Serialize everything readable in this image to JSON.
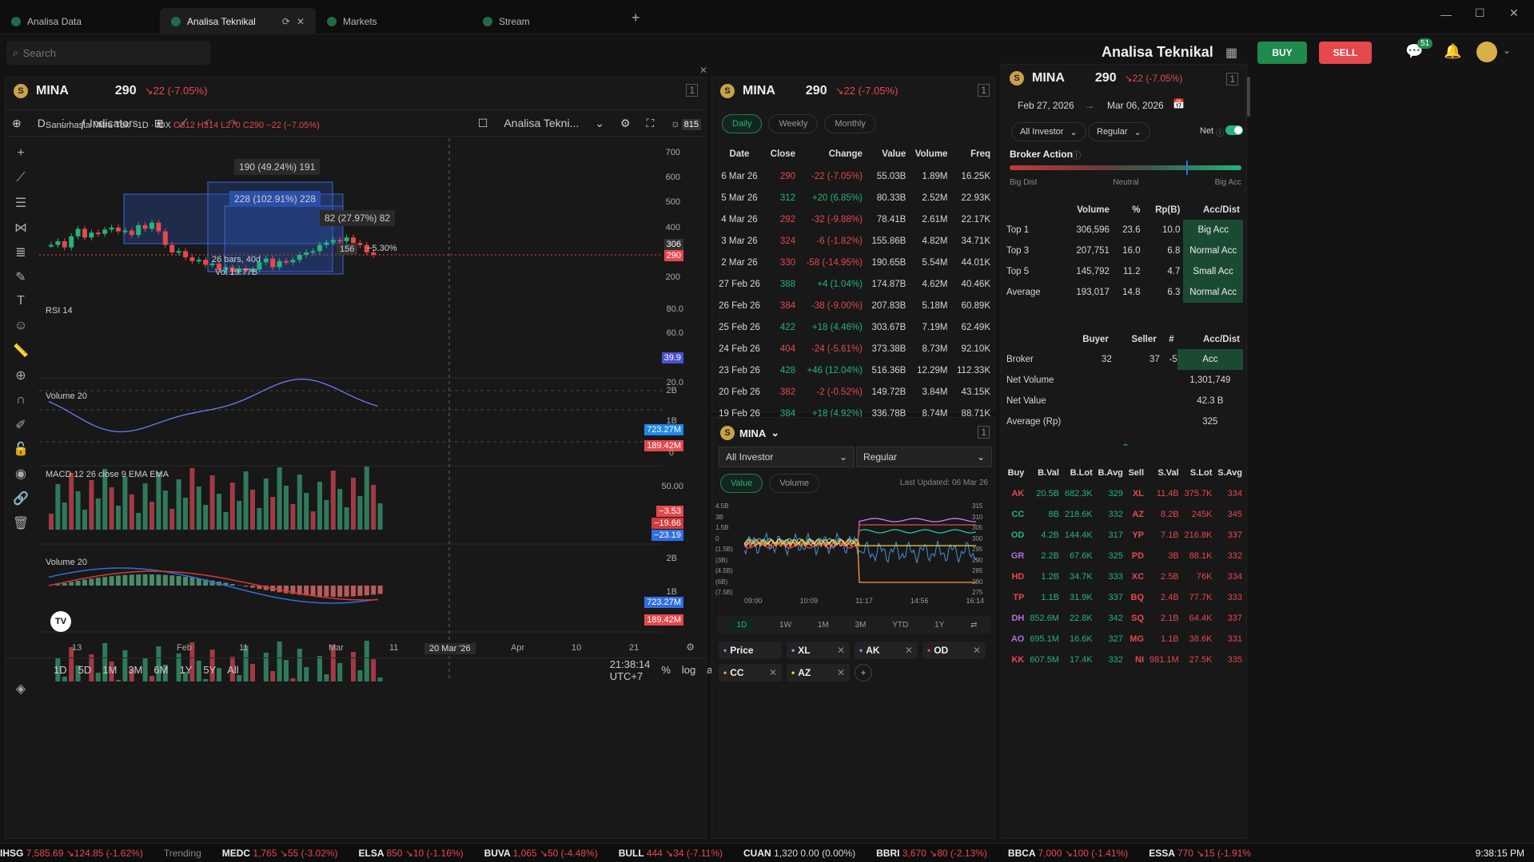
{
  "tabs": [
    {
      "label": "Analisa Data"
    },
    {
      "label": "Analisa Teknikal"
    },
    {
      "label": "Markets"
    },
    {
      "label": "Stream"
    }
  ],
  "toolbar": {
    "search_placeholder": "Search",
    "page_title": "Analisa Teknikal",
    "buy": "BUY",
    "sell": "SELL",
    "notif_count": "51"
  },
  "chart_panel": {
    "symbol": "MINA",
    "price": "290",
    "change": "↘22 (-7.05%)",
    "interval": "D",
    "indicators_label": "Indicators",
    "layout_name": "Analisa Tekni...",
    "legend": "Sanurhasta Mitra Tbk · 1D · IDX",
    "ohlc": "O312 H314 L270 C290 −22 (−7.05%)",
    "measure1": "190 (49.24%) 191",
    "measure2": "228 (102.91%) 228",
    "measure3": "82 (27.97%) 82",
    "bars_label": "26 bars, 40d",
    "vol_label": "Vol 19.77B",
    "measure_small": "156",
    "measure_pct": "−5.30%",
    "price_axis": [
      "815",
      "700",
      "600",
      "500",
      "400",
      "306",
      "290",
      "200"
    ],
    "rsi_title": "RSI 14",
    "rsi_axis": [
      "80.0",
      "60.0",
      "39.9",
      "20.0"
    ],
    "vol_title": "Volume 20",
    "vol_axis": [
      "2B",
      "1B",
      "723.27M",
      "189.42M",
      "0"
    ],
    "macd_title": "MACD 12 26 close 9 EMA EMA",
    "macd_axis": [
      "50.00",
      "−3.53",
      "−19.66",
      "−23.19"
    ],
    "vol2_title": "Volume 20",
    "vol2_axis": [
      "2B",
      "1B",
      "723.27M",
      "189.42M"
    ],
    "x_axis": [
      "13",
      "Feb",
      "11",
      "Mar",
      "11",
      "20 Mar '26",
      "Apr",
      "10",
      "21"
    ],
    "ranges": [
      "1D",
      "5D",
      "1M",
      "3M",
      "6M",
      "1Y",
      "5Y",
      "All"
    ],
    "clock": "21:38:14 UTC+7",
    "scale_opts": [
      "%",
      "log",
      "auto"
    ]
  },
  "history_panel": {
    "symbol": "MINA",
    "price": "290",
    "change": "↘22 (-7.05%)",
    "tabs": [
      "Daily",
      "Weekly",
      "Monthly"
    ],
    "columns": [
      "Date",
      "Close",
      "Change",
      "Value",
      "Volume",
      "Freq"
    ],
    "rows": [
      [
        "6 Mar 26",
        "290",
        "-22 (-7.05%)",
        "55.03B",
        "1.89M",
        "16.25K",
        "r"
      ],
      [
        "5 Mar 26",
        "312",
        "+20 (6.85%)",
        "80.33B",
        "2.52M",
        "22.93K",
        "g"
      ],
      [
        "4 Mar 26",
        "292",
        "-32 (-9.88%)",
        "78.41B",
        "2.61M",
        "22.17K",
        "r"
      ],
      [
        "3 Mar 26",
        "324",
        "-6 (-1.82%)",
        "155.86B",
        "4.82M",
        "34.71K",
        "r"
      ],
      [
        "2 Mar 26",
        "330",
        "-58 (-14.95%)",
        "190.65B",
        "5.54M",
        "44.01K",
        "r"
      ],
      [
        "27 Feb 26",
        "388",
        "+4 (1.04%)",
        "174.87B",
        "4.62M",
        "40.46K",
        "g"
      ],
      [
        "26 Feb 26",
        "384",
        "-38 (-9.00%)",
        "207.83B",
        "5.18M",
        "60.89K",
        "r"
      ],
      [
        "25 Feb 26",
        "422",
        "+18 (4.46%)",
        "303.67B",
        "7.19M",
        "62.49K",
        "g"
      ],
      [
        "24 Feb 26",
        "404",
        "-24 (-5.61%)",
        "373.38B",
        "8.73M",
        "92.10K",
        "r"
      ],
      [
        "23 Feb 26",
        "428",
        "+46 (12.04%)",
        "516.36B",
        "12.29M",
        "112.33K",
        "g"
      ],
      [
        "20 Feb 26",
        "382",
        "-2 (-0.52%)",
        "149.72B",
        "3.84M",
        "43.15K",
        "r"
      ],
      [
        "19 Feb 26",
        "384",
        "+18 (4.92%)",
        "336.78B",
        "8.74M",
        "88.71K",
        "g"
      ]
    ]
  },
  "flow_panel": {
    "symbol": "MINA",
    "investor": "All Investor",
    "market": "Regular",
    "toggles": [
      "Value",
      "Volume"
    ],
    "updated": "Last Updated: 06 Mar 26",
    "y_left": [
      "4.5B",
      "3B",
      "1.5B",
      "0",
      "(1.5B)",
      "(3B)",
      "(4.5B)",
      "(6B)",
      "(7.5B)"
    ],
    "y_right": [
      "315",
      "310",
      "305",
      "300",
      "295",
      "290",
      "285",
      "280",
      "275"
    ],
    "x_axis": [
      "09:00",
      "10:09",
      "11:17",
      "14:56",
      "16:14"
    ],
    "ranges": [
      "1D",
      "1W",
      "1M",
      "3M",
      "YTD",
      "1Y"
    ],
    "chips": [
      {
        "name": "Price",
        "color": "#7b8cff"
      },
      {
        "name": "XL",
        "color": "#c77dff"
      },
      {
        "name": "AK",
        "color": "#c77dff"
      },
      {
        "name": "OD",
        "color": "#e5484d"
      },
      {
        "name": "CC",
        "color": "#ff9a3c"
      },
      {
        "name": "AZ",
        "color": "#f2d14b"
      }
    ]
  },
  "broker_panel": {
    "symbol": "MINA",
    "price": "290",
    "change": "↘22 (-7.05%)",
    "date_from": "Feb 27, 2026",
    "date_to": "Mar 06, 2026",
    "investor": "All Investor",
    "market": "Regular",
    "net_label": "Net",
    "action_title": "Broker Action",
    "scale": [
      "Big Dist",
      "Neutral",
      "Big Acc"
    ],
    "summary_cols": [
      "Volume",
      "%",
      "Rp(B)",
      "Acc/Dist"
    ],
    "summary": [
      [
        "Top 1",
        "306,596",
        "23.6",
        "10.0",
        "Big Acc"
      ],
      [
        "Top 3",
        "207,751",
        "16.0",
        "6.8",
        "Normal Acc"
      ],
      [
        "Top 5",
        "145,792",
        "11.2",
        "4.7",
        "Small Acc"
      ],
      [
        "Average",
        "193,017",
        "14.8",
        "6.3",
        "Normal Acc"
      ]
    ],
    "bs_cols": [
      "Buyer",
      "Seller",
      "#",
      "Acc/Dist"
    ],
    "broker_row": [
      "Broker",
      "32",
      "37",
      "-5",
      "Acc"
    ],
    "net_volume_label": "Net Volume",
    "net_volume": "1,301,749",
    "net_value_label": "Net Value",
    "net_value": "42.3 B",
    "avg_label": "Average (Rp)",
    "avg": "325",
    "trade_cols": [
      "Buy",
      "B.Val",
      "B.Lot",
      "B.Avg",
      "Sell",
      "S.Val",
      "S.Lot",
      "S.Avg"
    ],
    "trades": [
      [
        "AK",
        "20.5B",
        "682.3K",
        "329",
        "XL",
        "11.4B",
        "375.7K",
        "334"
      ],
      [
        "CC",
        "8B",
        "218.6K",
        "332",
        "AZ",
        "8.2B",
        "245K",
        "345"
      ],
      [
        "OD",
        "4.2B",
        "144.4K",
        "317",
        "YP",
        "7.1B",
        "216.8K",
        "337"
      ],
      [
        "GR",
        "2.2B",
        "67.6K",
        "325",
        "PD",
        "3B",
        "88.1K",
        "332"
      ],
      [
        "HD",
        "1.2B",
        "34.7K",
        "333",
        "XC",
        "2.5B",
        "76K",
        "334"
      ],
      [
        "TP",
        "1.1B",
        "31.9K",
        "337",
        "BQ",
        "2.4B",
        "77.7K",
        "333"
      ],
      [
        "DH",
        "852.6M",
        "22.8K",
        "342",
        "SQ",
        "2.1B",
        "64.4K",
        "337"
      ],
      [
        "AO",
        "695.1M",
        "16.6K",
        "327",
        "MG",
        "1.1B",
        "38.6K",
        "331"
      ],
      [
        "KK",
        "607.5M",
        "17.4K",
        "332",
        "NI",
        "981.1M",
        "27.5K",
        "335"
      ]
    ]
  },
  "ticker": [
    {
      "sym": "IHSG",
      "val": "7,585.69",
      "chg": "↘124.85 (-1.62%)",
      "c": "r"
    },
    {
      "sym": "Trending",
      "val": "",
      "chg": "",
      "c": ""
    },
    {
      "sym": "MEDC",
      "val": "1,765",
      "chg": "↘55 (-3.02%)",
      "c": "r"
    },
    {
      "sym": "ELSA",
      "val": "850",
      "chg": "↘10 (-1.16%)",
      "c": "r"
    },
    {
      "sym": "BUVA",
      "val": "1,065",
      "chg": "↘50 (-4.48%)",
      "c": "r"
    },
    {
      "sym": "BULL",
      "val": "444",
      "chg": "↘34 (-7.11%)",
      "c": "r"
    },
    {
      "sym": "CUAN",
      "val": "1,320",
      "chg": "0.00 (0.00%)",
      "c": ""
    },
    {
      "sym": "BBRI",
      "val": "3,670",
      "chg": "↘80 (-2.13%)",
      "c": "r"
    },
    {
      "sym": "BBCA",
      "val": "7,000",
      "chg": "↘100 (-1.41%)",
      "c": "r"
    },
    {
      "sym": "ESSA",
      "val": "770",
      "chg": "↘15 (-1.91%",
      "c": "r"
    }
  ],
  "time": "9:38:15 PM"
}
